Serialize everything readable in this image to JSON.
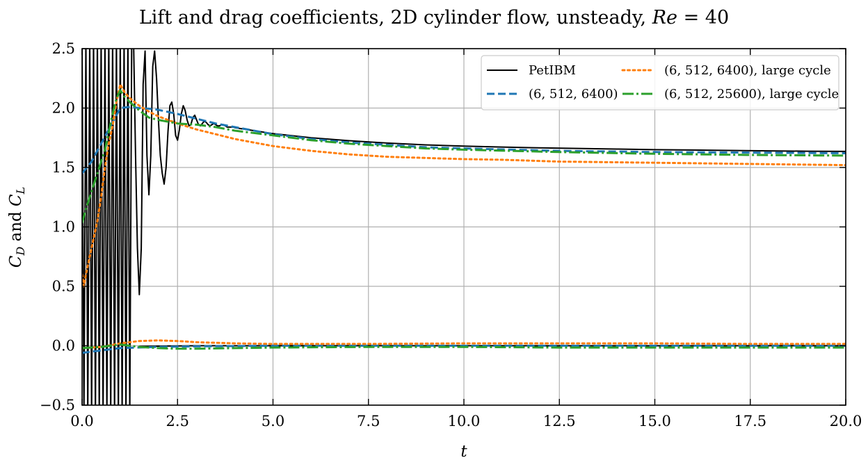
{
  "chart_data": {
    "type": "line",
    "title": "Lift and drag coefficients, 2D cylinder flow, unsteady, Re = 40",
    "title_parts": {
      "lead": "Lift and drag coefficients, 2D cylinder flow, unsteady, ",
      "symbol": "Re",
      "rest": " = 40"
    },
    "xlabel": "t",
    "ylabel": "C_D and C_L",
    "ylabel_parts": {
      "c1": "C",
      "s1": "D",
      "mid": " and ",
      "c2": "C",
      "s2": "L"
    },
    "xlim": [
      0,
      20
    ],
    "ylim": [
      -0.5,
      2.5
    ],
    "x_ticks": [
      0,
      2.5,
      5,
      7.5,
      10,
      12.5,
      15,
      17.5,
      20
    ],
    "x_tick_labels": [
      "0.0",
      "2.5",
      "5.0",
      "7.5",
      "10.0",
      "12.5",
      "15.0",
      "17.5",
      "20.0"
    ],
    "y_ticks": [
      -0.5,
      0,
      0.5,
      1,
      1.5,
      2,
      2.5
    ],
    "y_tick_labels": [
      "−0.5",
      "0.0",
      "0.5",
      "1.0",
      "1.5",
      "2.0",
      "2.5"
    ],
    "grid": true,
    "legend_position": "top-right",
    "series": [
      {
        "name": "PetIBM",
        "color": "#000000",
        "style": "solid",
        "role": "drag",
        "x": [
          0.0,
          0.05,
          0.1,
          0.15,
          0.2,
          0.25,
          0.3,
          0.35,
          0.4,
          0.45,
          0.5,
          0.55,
          0.6,
          0.65,
          0.7,
          0.75,
          0.8,
          0.85,
          0.9,
          0.95,
          1.0,
          1.05,
          1.1,
          1.15,
          1.2,
          1.25,
          1.3,
          1.35,
          1.4,
          1.45,
          1.5,
          1.55,
          1.6,
          1.65,
          1.7,
          1.75,
          1.8,
          1.85,
          1.9,
          1.95,
          2.0,
          2.05,
          2.1,
          2.15,
          2.2,
          2.25,
          2.3,
          2.35,
          2.4,
          2.45,
          2.5,
          2.55,
          2.6,
          2.65,
          2.7,
          2.75,
          2.8,
          2.85,
          2.9,
          2.95,
          3.0,
          3.05,
          3.1,
          3.15,
          3.2,
          3.25,
          3.3,
          3.35,
          3.4,
          3.45,
          3.5,
          3.55,
          3.6,
          3.65,
          3.7,
          3.75,
          3.8,
          3.85,
          3.9,
          3.95,
          4.0,
          4.5,
          5.0,
          6.0,
          7.0,
          8.0,
          9.0,
          10.0,
          11.0,
          12.0,
          13.0,
          14.0,
          15.0,
          16.0,
          17.0,
          18.0,
          19.0,
          20.0
        ],
        "y": [
          2.6,
          -0.6,
          2.6,
          -0.6,
          2.6,
          -0.6,
          2.6,
          -0.6,
          2.6,
          -0.6,
          2.6,
          -0.6,
          2.6,
          -0.6,
          2.6,
          -0.6,
          2.6,
          -0.6,
          2.6,
          -0.6,
          2.6,
          -0.6,
          2.6,
          -0.6,
          2.6,
          -0.6,
          2.6,
          2.55,
          1.6,
          0.82,
          0.43,
          0.82,
          2.2,
          2.48,
          1.6,
          1.27,
          1.6,
          2.35,
          2.48,
          2.25,
          1.9,
          1.6,
          1.45,
          1.36,
          1.5,
          1.8,
          2.02,
          2.05,
          1.95,
          1.77,
          1.73,
          1.82,
          1.95,
          2.02,
          1.98,
          1.9,
          1.85,
          1.86,
          1.92,
          1.94,
          1.9,
          1.86,
          1.85,
          1.87,
          1.89,
          1.88,
          1.86,
          1.85,
          1.86,
          1.87,
          1.86,
          1.85,
          1.85,
          1.86,
          1.86,
          1.85,
          1.84,
          1.84,
          1.84,
          1.84,
          1.835,
          1.81,
          1.785,
          1.75,
          1.725,
          1.705,
          1.69,
          1.68,
          1.672,
          1.665,
          1.66,
          1.655,
          1.65,
          1.647,
          1.643,
          1.64,
          1.637,
          1.635
        ]
      },
      {
        "name": "PetIBM",
        "color": "#000000",
        "style": "solid",
        "role": "lift",
        "legend": false,
        "x": [
          1.5,
          3.0,
          5.0,
          7.5,
          10.0,
          12.5,
          15.0,
          17.5,
          20.0
        ],
        "y": [
          -0.005,
          0.0,
          0.0,
          0.0,
          0.0,
          0.0,
          0.0,
          0.0,
          0.0
        ]
      },
      {
        "name": "(6, 512, 6400)",
        "color": "#1f77b4",
        "style": "dashed",
        "role": "drag",
        "x": [
          0.0,
          0.25,
          0.5,
          0.75,
          1.0,
          1.25,
          1.5,
          1.75,
          2.0,
          2.5,
          3.0,
          3.5,
          4.0,
          5.0,
          6.0,
          7.0,
          8.0,
          9.0,
          10.0,
          12.5,
          15.0,
          17.5,
          20.0
        ],
        "y": [
          1.45,
          1.55,
          1.7,
          1.85,
          2.0,
          2.01,
          2.0,
          1.995,
          1.985,
          1.95,
          1.91,
          1.87,
          1.84,
          1.78,
          1.74,
          1.71,
          1.69,
          1.67,
          1.66,
          1.64,
          1.63,
          1.625,
          1.62
        ]
      },
      {
        "name": "(6, 512, 6400)",
        "color": "#1f77b4",
        "style": "dashed",
        "role": "lift",
        "legend": false,
        "x": [
          0.0,
          0.5,
          1.0,
          2.0,
          3.0,
          5.0,
          7.5,
          10.0,
          12.5,
          15.0,
          17.5,
          20.0
        ],
        "y": [
          -0.06,
          -0.04,
          -0.02,
          -0.01,
          -0.005,
          0.0,
          0.0,
          0.0,
          0.0,
          0.0,
          0.0,
          0.0
        ]
      },
      {
        "name": "(6, 512, 6400), large cycle",
        "color": "#ff7f0e",
        "style": "dotted",
        "role": "drag",
        "x": [
          0.0,
          0.05,
          0.1,
          0.2,
          0.3,
          0.4,
          0.5,
          0.6,
          0.7,
          0.8,
          0.9,
          1.0,
          1.1,
          1.2,
          1.3,
          1.5,
          1.75,
          2.0,
          2.5,
          3.0,
          3.5,
          4.0,
          5.0,
          6.0,
          7.0,
          7.5,
          8.0,
          9.0,
          10.0,
          11.0,
          12.5,
          15.0,
          17.5,
          20.0
        ],
        "y": [
          0.6,
          0.5,
          0.6,
          0.75,
          0.9,
          1.05,
          1.25,
          1.5,
          1.7,
          1.85,
          2.05,
          2.2,
          2.14,
          2.1,
          2.07,
          2.02,
          1.97,
          1.93,
          1.87,
          1.82,
          1.78,
          1.74,
          1.68,
          1.64,
          1.61,
          1.6,
          1.59,
          1.58,
          1.57,
          1.565,
          1.55,
          1.54,
          1.53,
          1.52
        ]
      },
      {
        "name": "(6, 512, 6400), large cycle",
        "color": "#ff7f0e",
        "style": "dotted",
        "role": "lift",
        "legend": false,
        "x": [
          0.0,
          0.5,
          1.0,
          1.5,
          2.0,
          2.5,
          3.0,
          4.0,
          5.0,
          7.5,
          10.0,
          12.5,
          15.0,
          17.5,
          20.0
        ],
        "y": [
          -0.02,
          -0.01,
          0.02,
          0.04,
          0.045,
          0.04,
          0.03,
          0.02,
          0.015,
          0.015,
          0.02,
          0.02,
          0.02,
          0.015,
          0.015
        ]
      },
      {
        "name": "(6, 512, 25600), large cycle",
        "color": "#2ca02c",
        "style": "dashdot",
        "role": "drag",
        "x": [
          0.0,
          0.1,
          0.2,
          0.3,
          0.4,
          0.5,
          0.6,
          0.7,
          0.8,
          0.9,
          1.0,
          1.1,
          1.25,
          1.5,
          1.75,
          2.0,
          2.5,
          3.0,
          3.5,
          4.0,
          5.0,
          6.0,
          7.0,
          8.0,
          9.0,
          10.0,
          12.5,
          15.0,
          17.5,
          20.0
        ],
        "y": [
          1.03,
          1.15,
          1.25,
          1.35,
          1.45,
          1.55,
          1.65,
          1.8,
          1.95,
          2.08,
          2.15,
          2.1,
          2.05,
          1.98,
          1.92,
          1.9,
          1.87,
          1.86,
          1.84,
          1.81,
          1.77,
          1.73,
          1.7,
          1.68,
          1.66,
          1.65,
          1.63,
          1.615,
          1.605,
          1.6
        ]
      },
      {
        "name": "(6, 512, 25600), large cycle",
        "color": "#2ca02c",
        "style": "dashdot",
        "role": "lift",
        "legend": false,
        "x": [
          0.0,
          0.5,
          1.0,
          1.5,
          2.0,
          2.5,
          3.0,
          4.0,
          5.0,
          7.5,
          10.0,
          12.5,
          15.0,
          17.5,
          20.0
        ],
        "y": [
          -0.02,
          -0.01,
          0.01,
          -0.01,
          -0.02,
          -0.025,
          -0.025,
          -0.02,
          -0.015,
          -0.01,
          -0.01,
          -0.015,
          -0.015,
          -0.015,
          -0.015
        ]
      }
    ],
    "legend_entries": [
      {
        "label": "PetIBM",
        "color": "#000000",
        "style": "solid"
      },
      {
        "label": "(6, 512, 6400)",
        "color": "#1f77b4",
        "style": "dashed"
      },
      {
        "label": "(6, 512, 6400), large cycle",
        "color": "#ff7f0e",
        "style": "dotted"
      },
      {
        "label": "(6, 512, 25600), large cycle",
        "color": "#2ca02c",
        "style": "dashdot"
      }
    ]
  }
}
